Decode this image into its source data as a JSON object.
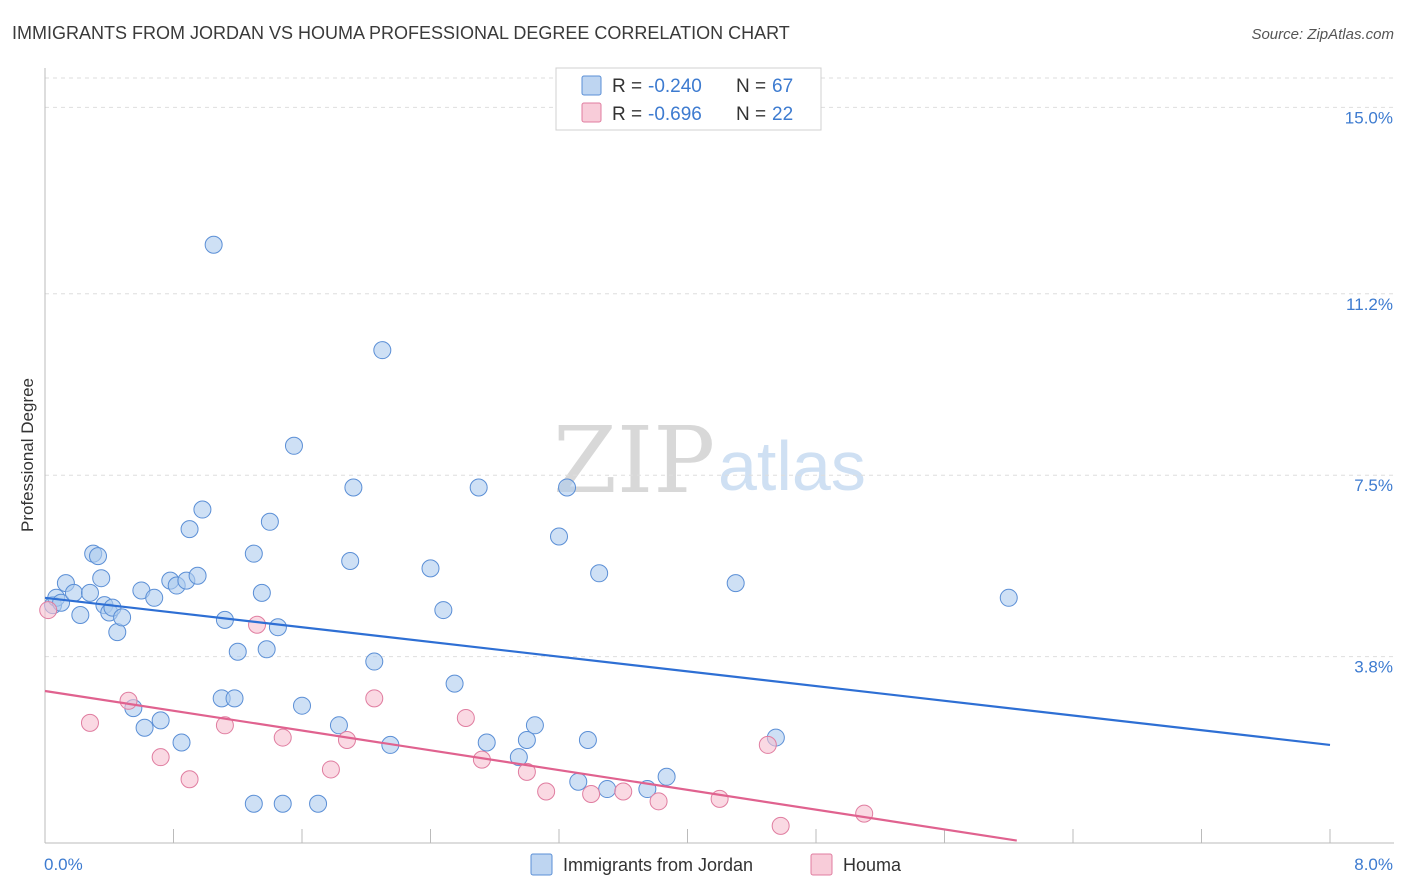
{
  "title": "IMMIGRANTS FROM JORDAN VS HOUMA PROFESSIONAL DEGREE CORRELATION CHART",
  "source": "Source: ZipAtlas.com",
  "watermark": {
    "zip": "ZIP",
    "atlas": "atlas"
  },
  "colors": {
    "blue_fill": "#aecbee",
    "blue_stroke": "#5b8fd6",
    "blue_line": "#2e6fd4",
    "pink_fill": "#f6bfd0",
    "pink_stroke": "#e07da0",
    "pink_line": "#e0628f",
    "tick_text": "#3d7bd0",
    "grid": "#dedede"
  },
  "legend": {
    "r_label": "R =",
    "n_label": "N =",
    "series": [
      {
        "r": "-0.240",
        "n": "67"
      },
      {
        "r": "-0.696",
        "n": "22"
      }
    ]
  },
  "chart_data": {
    "type": "scatter",
    "title": "IMMIGRANTS FROM JORDAN VS HOUMA PROFESSIONAL DEGREE CORRELATION CHART",
    "xlabel": "",
    "ylabel": "Professional Degree",
    "xlim": [
      0,
      8
    ],
    "ylim": [
      0,
      15.6
    ],
    "x_tick_labels": [
      "0.0%",
      "8.0%"
    ],
    "y_ticks": [
      3.8,
      7.5,
      11.2,
      15.0
    ],
    "y_tick_labels": [
      "3.8%",
      "7.5%",
      "11.2%",
      "15.0%"
    ],
    "grid": true,
    "legend_placement": "top-center",
    "series": [
      {
        "name": "Immigrants from Jordan",
        "trend": [
          [
            0,
            5.0
          ],
          [
            8.0,
            2.0
          ]
        ],
        "points": [
          [
            0.05,
            4.85
          ],
          [
            0.07,
            5.0
          ],
          [
            0.1,
            4.9
          ],
          [
            0.13,
            5.3
          ],
          [
            0.18,
            5.1
          ],
          [
            0.22,
            4.65
          ],
          [
            0.28,
            5.1
          ],
          [
            0.3,
            5.9
          ],
          [
            0.33,
            5.85
          ],
          [
            0.35,
            5.4
          ],
          [
            0.37,
            4.85
          ],
          [
            0.4,
            4.7
          ],
          [
            0.42,
            4.8
          ],
          [
            0.45,
            4.3
          ],
          [
            0.48,
            4.6
          ],
          [
            0.6,
            5.15
          ],
          [
            0.68,
            5.0
          ],
          [
            0.78,
            5.35
          ],
          [
            0.82,
            5.25
          ],
          [
            0.88,
            5.35
          ],
          [
            0.95,
            5.45
          ],
          [
            0.9,
            6.4
          ],
          [
            0.98,
            6.8
          ],
          [
            1.05,
            12.2
          ],
          [
            1.12,
            4.55
          ],
          [
            1.2,
            3.9
          ],
          [
            1.3,
            5.9
          ],
          [
            1.35,
            5.1
          ],
          [
            1.38,
            3.95
          ],
          [
            1.4,
            6.55
          ],
          [
            1.45,
            4.4
          ],
          [
            1.55,
            8.1
          ],
          [
            1.6,
            2.8
          ],
          [
            1.7,
            0.8
          ],
          [
            1.83,
            2.4
          ],
          [
            1.9,
            5.75
          ],
          [
            1.92,
            7.25
          ],
          [
            2.05,
            3.7
          ],
          [
            2.1,
            10.05
          ],
          [
            2.15,
            2.0
          ],
          [
            0.55,
            2.75
          ],
          [
            0.62,
            2.35
          ],
          [
            0.72,
            2.5
          ],
          [
            0.85,
            2.05
          ],
          [
            1.1,
            2.95
          ],
          [
            1.18,
            2.95
          ],
          [
            1.3,
            0.8
          ],
          [
            1.48,
            0.8
          ],
          [
            2.4,
            5.6
          ],
          [
            2.48,
            4.75
          ],
          [
            2.55,
            3.25
          ],
          [
            2.7,
            7.25
          ],
          [
            2.75,
            2.05
          ],
          [
            2.95,
            1.75
          ],
          [
            3.0,
            2.1
          ],
          [
            3.05,
            2.4
          ],
          [
            3.2,
            6.25
          ],
          [
            3.25,
            7.25
          ],
          [
            3.32,
            1.25
          ],
          [
            3.38,
            2.1
          ],
          [
            3.45,
            5.5
          ],
          [
            3.5,
            1.1
          ],
          [
            3.75,
            1.1
          ],
          [
            3.87,
            1.35
          ],
          [
            4.3,
            5.3
          ],
          [
            4.55,
            2.15
          ],
          [
            6.0,
            5.0
          ]
        ]
      },
      {
        "name": "Houma",
        "trend": [
          [
            0,
            3.1
          ],
          [
            6.05,
            0.05
          ]
        ],
        "points": [
          [
            0.02,
            4.75
          ],
          [
            0.28,
            2.45
          ],
          [
            0.52,
            2.9
          ],
          [
            0.72,
            1.75
          ],
          [
            0.9,
            1.3
          ],
          [
            1.12,
            2.4
          ],
          [
            1.32,
            4.45
          ],
          [
            1.48,
            2.15
          ],
          [
            1.78,
            1.5
          ],
          [
            1.88,
            2.1
          ],
          [
            2.05,
            2.95
          ],
          [
            2.62,
            2.55
          ],
          [
            2.72,
            1.7
          ],
          [
            3.0,
            1.45
          ],
          [
            3.12,
            1.05
          ],
          [
            3.4,
            1.0
          ],
          [
            3.6,
            1.05
          ],
          [
            3.82,
            0.85
          ],
          [
            4.2,
            0.9
          ],
          [
            4.5,
            2.0
          ],
          [
            4.58,
            0.35
          ],
          [
            5.1,
            0.6
          ]
        ]
      }
    ]
  }
}
